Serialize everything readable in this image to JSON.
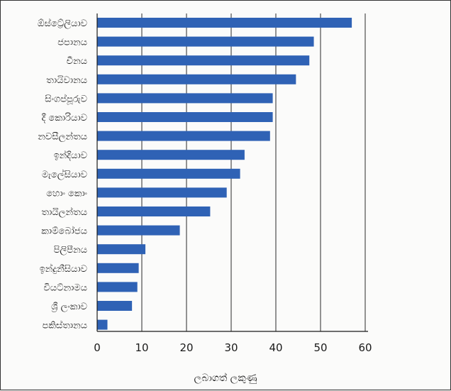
{
  "chart_data": {
    "type": "bar",
    "orientation": "horizontal",
    "categories": [
      "ඕස්ට්‍රේලියාව",
      "ජපානය",
      "චීනය",
      "තායිවානය",
      "සිංගප්පූරුව",
      "දී කොරියාව",
      "නවසීලන්තය",
      "ඉන්දියාව",
      "මැලේසියාව",
      "හොං කොං",
      "තායිලන්තය",
      "කාම්බෝජය",
      "පිලිපීනය",
      "ඉන්දුනීසියාව",
      "වියට්නාමය",
      "ශ්‍රී ලංකාව",
      "පකිස්තානය"
    ],
    "values": [
      57,
      48.5,
      47.5,
      44.5,
      39.3,
      39.3,
      38.7,
      33,
      32,
      29,
      25.3,
      18.5,
      10.8,
      9.3,
      9,
      7.8,
      2.3
    ],
    "xlabel": "ලබාගත් ලකුණු",
    "ylabel": "",
    "xlim": [
      0,
      60
    ],
    "xticks": [
      0,
      10,
      20,
      30,
      40,
      50,
      60
    ],
    "grid": "vertical",
    "bar_color": "#2f62b5"
  }
}
